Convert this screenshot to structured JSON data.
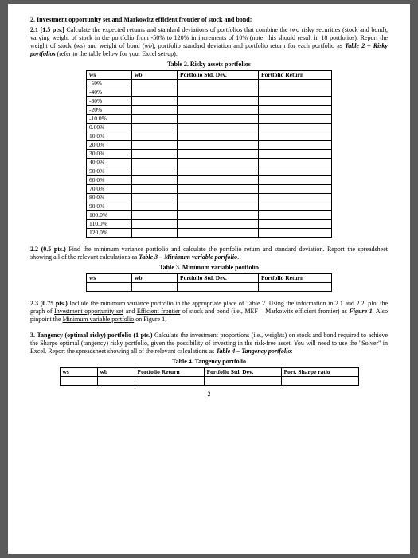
{
  "q2": {
    "title_num": "2.",
    "title_text": "Investment opportunity set and Markowitz efficient frontier of stock and bond",
    "q21_num": "2.1",
    "q21_pts": "[1.5 pts.]",
    "q21_body": "Calculate the expected returns and standard deviations of portfolios that combine the two risky securities (stock and bond), varying weight of stock in the portfolio from -50% to 120% in increments of 10% (note: this should result in 18 portfolios). Report the weight of stock (",
    "q21_ws": "ws",
    "q21_body2": ") and weight of bond (",
    "q21_wb": "wb",
    "q21_body3": "), portfolio standard deviation and portfolio return for each portfolio as ",
    "q21_tableref": "Table 2 – Risky portfolios",
    "q21_body4": " (refer to the table below for your Excel set-up).",
    "q22_num": "2.2",
    "q22_pts": "(0.5 pts.)",
    "q22_body": "Find the minimum variance portfolio and calculate the portfolio return and standard deviation. Report the spreadsheet showing all of the relevant calculations as ",
    "q22_tableref": "Table 3 – Minimum variable portfolio",
    "q23_num": "2.3",
    "q23_pts": "(0.75 pts.)",
    "q23_body1": "Include the minimum variance portfolio in the appropriate place of Table 2. Using the information in 2.1 and 2.2, plot the graph of ",
    "q23_u1": "Investment opportunity set",
    "q23_body2": " and ",
    "q23_u2": "Efficient frontier",
    "q23_body3": " of stock and bond (i.e., MEF – Markowitz efficient frontier) as ",
    "q23_fig": "Figure 1",
    "q23_body4": ". Also pinpoint the ",
    "q23_u3": "Minimum variable portfolio",
    "q23_body5": " on Figure 1."
  },
  "q3": {
    "title_num": "3.",
    "title_text": "Tangency (optimal risky) portfolio (1 pts.)",
    "body1": "Calculate the investment proportions (i.e., weights) on stock and bond required to achieve the Sharpe optimal (tangency) risky portfolio, given the possibility of investing in the risk-free asset. You will need to use the \"Solver\" in Excel. Report the spreadsheet showing all of the relevant calculations as ",
    "tableref": "Table 4 – Tangency portfolio"
  },
  "table2": {
    "caption": "Table 2. Risky assets portfolios",
    "columns": [
      "ws",
      "wb",
      "Portfolio Std. Dev.",
      "Portfolio Return"
    ],
    "ws_values": [
      "-50%",
      "-40%",
      "-30%",
      "-20%",
      "-10.0%",
      "0.00%",
      "10.0%",
      "20.0%",
      "30.0%",
      "40.0%",
      "50.0%",
      "60.0%",
      "70.0%",
      "80.0%",
      "90.0%",
      "100.0%",
      "110.0%",
      "120.0%"
    ]
  },
  "table3": {
    "caption": "Table 3. Minimum variable portfolio",
    "columns": [
      "ws",
      "wb",
      "Portfolio Std. Dev.",
      "Portfolio Return"
    ]
  },
  "table4": {
    "caption": "Table 4. Tangency portfolio",
    "columns": [
      "ws",
      "wb",
      "Portfolio Return",
      "Portfolio Std. Dev.",
      "Port. Sharpe ratio"
    ]
  },
  "page_number": "2",
  "colors": {
    "page_bg": "#ffffff",
    "outer_bg": "#5a5a5a",
    "text": "#000000",
    "border": "#000000"
  }
}
